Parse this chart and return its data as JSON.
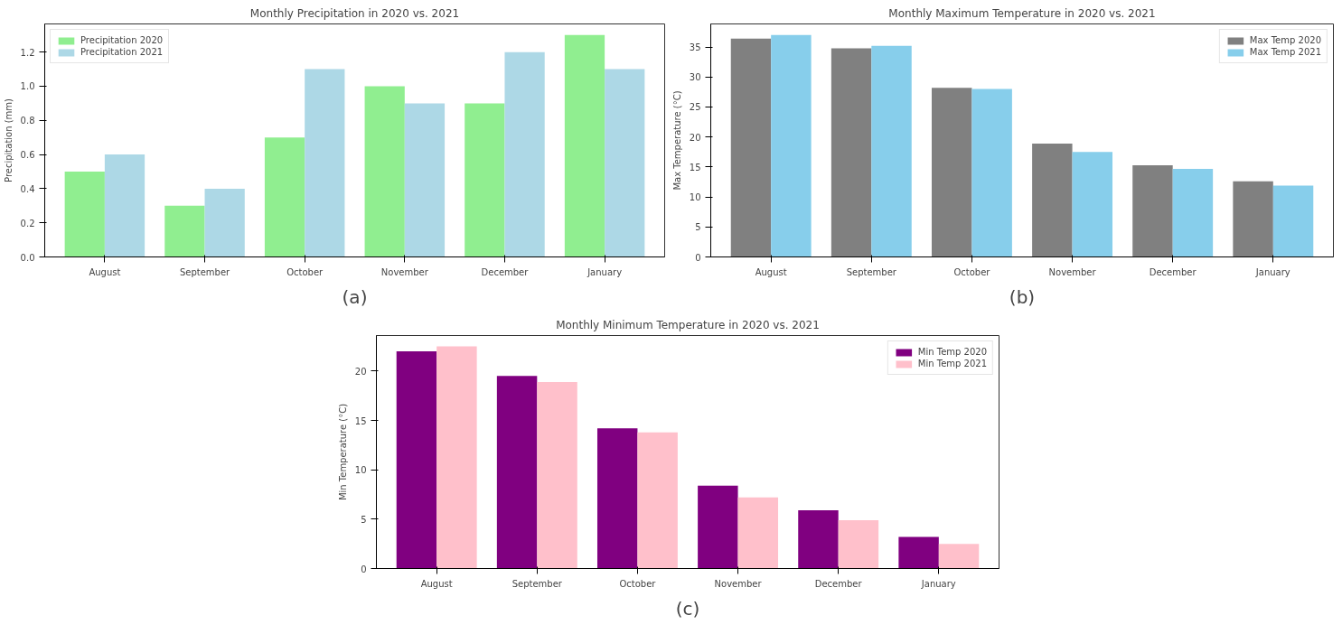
{
  "chart_data": [
    {
      "type": "bar",
      "title": "Monthly Precipitation in 2020 vs. 2021",
      "ylabel": "Precipitation (mm)",
      "categories": [
        "August",
        "September",
        "October",
        "November",
        "December",
        "January"
      ],
      "series": [
        {
          "name": "Precipitation 2020",
          "color": "#90ee90",
          "values": [
            0.5,
            0.3,
            0.7,
            1.0,
            0.9,
            1.3
          ]
        },
        {
          "name": "Precipitation 2021",
          "color": "#add8e6",
          "values": [
            0.6,
            0.4,
            1.1,
            0.9,
            1.2,
            1.1
          ]
        }
      ],
      "ylim": [
        0,
        1.365
      ],
      "yticks": [
        {
          "value": 0,
          "label": "0.0"
        },
        {
          "value": 0.2,
          "label": "0.2"
        },
        {
          "value": 0.4,
          "label": "0.4"
        },
        {
          "value": 0.6,
          "label": "0.6"
        },
        {
          "value": 0.8,
          "label": "0.8"
        },
        {
          "value": 1.0,
          "label": "1.0"
        },
        {
          "value": 1.2,
          "label": "1.2"
        }
      ],
      "legend": "top left",
      "grid": false,
      "annotations": [
        "(a)"
      ]
    },
    {
      "type": "bar",
      "title": "Monthly Maximum Temperature in 2020 vs. 2021",
      "ylabel": "Max Temperature (°C)",
      "categories": [
        "August",
        "September",
        "October",
        "November",
        "December",
        "January"
      ],
      "series": [
        {
          "name": "Max Temp 2020",
          "color": "#808080",
          "values": [
            36.4,
            34.8,
            28.2,
            18.9,
            15.3,
            12.6
          ]
        },
        {
          "name": "Max Temp 2021",
          "color": "#87ceeb",
          "values": [
            37.0,
            35.2,
            28.0,
            17.5,
            14.7,
            11.9
          ]
        }
      ],
      "ylim": [
        0,
        38.85
      ],
      "yticks": [
        0,
        5,
        10,
        15,
        20,
        25,
        30,
        35
      ],
      "legend": "top right",
      "grid": false,
      "annotations": [
        "(b)"
      ]
    },
    {
      "type": "bar",
      "title": "Monthly Minimum Temperature in 2020 vs. 2021",
      "ylabel": "Min Temperature (°C)",
      "categories": [
        "August",
        "September",
        "October",
        "November",
        "December",
        "January"
      ],
      "series": [
        {
          "name": "Min Temp 2020",
          "color": "#800080",
          "values": [
            22.0,
            19.5,
            14.2,
            8.4,
            5.9,
            3.2
          ]
        },
        {
          "name": "Min Temp 2021",
          "color": "#ffc0cb",
          "values": [
            22.5,
            18.9,
            13.8,
            7.2,
            4.9,
            2.5
          ]
        }
      ],
      "ylim": [
        0,
        23.6
      ],
      "yticks": [
        0,
        5,
        10,
        15,
        20
      ],
      "legend": "top right",
      "grid": false,
      "annotations": [
        "(c)"
      ]
    }
  ]
}
